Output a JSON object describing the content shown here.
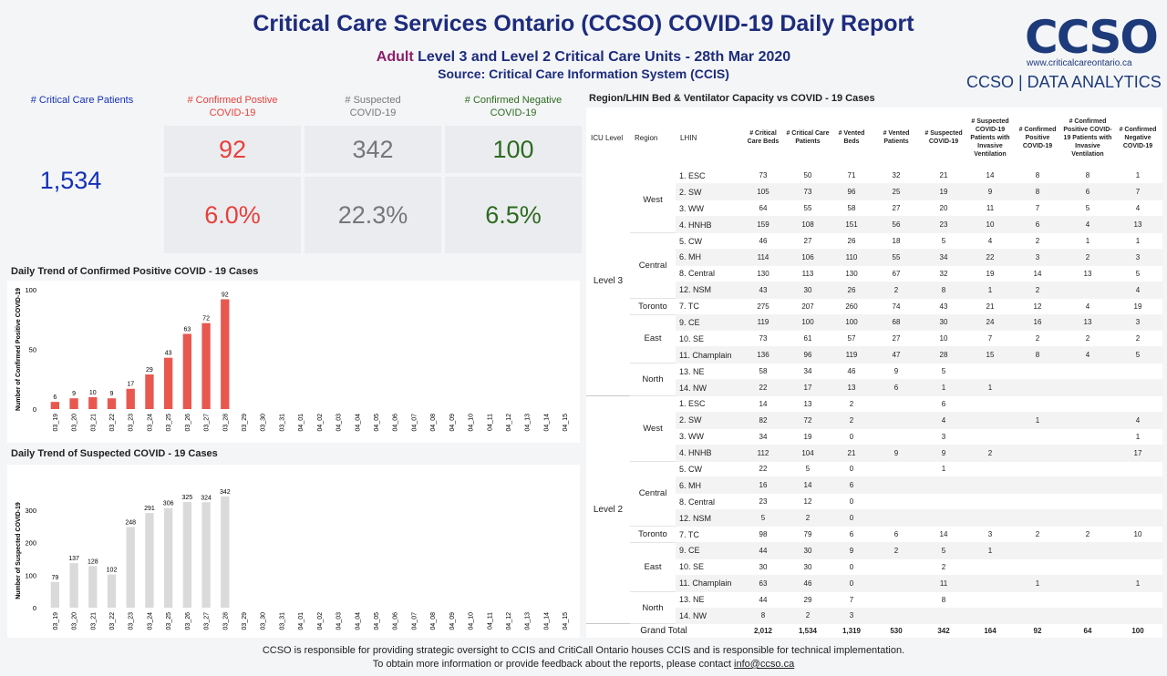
{
  "header": {
    "title": "Critical Care Services Ontario (CCSO) COVID-19 Daily Report",
    "subtitle_adult": "Adult",
    "subtitle_rest": "Level 3 and Level 2 Critical Care Units - 28th Mar 2020",
    "source": "Source: Critical Care Information System (CCIS)"
  },
  "logo": {
    "wordmark": "CCSO",
    "url": "www.criticalcareontario.ca",
    "tagline": "CCSO | DATA ANALYTICS"
  },
  "colors": {
    "navy": "#1d2c7c",
    "patients": "#1331b8",
    "positive": "#e8403a",
    "suspected": "#777777",
    "negative": "#2d6b1f",
    "bar_positive": "#e8584f",
    "bar_suspected": "#dadada"
  },
  "kpis": {
    "patients_label": "# Critical Care Patients",
    "patients_value": "1,534",
    "positive_label_1": "# Confirmed Postive",
    "positive_label_2": "COVID-19",
    "positive_count": "92",
    "positive_pct": "6.0%",
    "suspected_label_1": "# Suspected",
    "suspected_label_2": "COVID-19",
    "suspected_count": "342",
    "suspected_pct": "22.3%",
    "negative_label_1": "# Confirmed Negative",
    "negative_label_2": "COVID-19",
    "negative_count": "100",
    "negative_pct": "6.5%"
  },
  "chart_data": [
    {
      "type": "bar",
      "title": "Daily Trend of Confirmed Positive COVID - 19 Cases",
      "ylabel": "Number of Confirmed Positive COVID-19",
      "categories": [
        "03_19",
        "03_20",
        "03_21",
        "03_22",
        "03_23",
        "03_24",
        "03_25",
        "03_26",
        "03_27",
        "03_28",
        "03_29",
        "03_30",
        "03_31",
        "04_01",
        "04_02",
        "04_03",
        "04_04",
        "04_05",
        "04_06",
        "04_07",
        "04_08",
        "04_09",
        "04_10",
        "04_11",
        "04_12",
        "04_13",
        "04_14",
        "04_15"
      ],
      "values": [
        6,
        9,
        10,
        9,
        17,
        29,
        43,
        63,
        72,
        92,
        null,
        null,
        null,
        null,
        null,
        null,
        null,
        null,
        null,
        null,
        null,
        null,
        null,
        null,
        null,
        null,
        null,
        null
      ],
      "ylim": [
        0,
        100
      ],
      "yticks": [
        0,
        50,
        100
      ],
      "grid": false
    },
    {
      "type": "bar",
      "title": "Daily Trend of Suspected COVID - 19 Cases",
      "ylabel": "Number of Suspected COVID-19",
      "categories": [
        "03_19",
        "03_20",
        "03_21",
        "03_22",
        "03_23",
        "03_24",
        "03_25",
        "03_26",
        "03_27",
        "03_28",
        "03_29",
        "03_30",
        "03_31",
        "04_01",
        "04_02",
        "04_03",
        "04_04",
        "04_05",
        "04_06",
        "04_07",
        "04_08",
        "04_09",
        "04_10",
        "04_11",
        "04_12",
        "04_13",
        "04_14",
        "04_15"
      ],
      "values": [
        79,
        137,
        128,
        102,
        248,
        291,
        306,
        325,
        324,
        342,
        null,
        null,
        null,
        null,
        null,
        null,
        null,
        null,
        null,
        null,
        null,
        null,
        null,
        null,
        null,
        null,
        null,
        null
      ],
      "ylim": [
        0,
        350
      ],
      "yticks": [
        0,
        100,
        200,
        300
      ],
      "grid": false
    }
  ],
  "table": {
    "title": "Region/LHIN Bed & Ventilator Capacity vs COVID - 19 Cases",
    "headers": {
      "icu": "ICU Level",
      "region": "Region",
      "lhin": "LHIN",
      "cols": [
        "# Critical Care Beds",
        "# Critical Care Patients",
        "# Vented Beds",
        "# Vented Patients",
        "# Suspected COVID-19",
        "# Suspected COVID-19 Patients with Invasive Ventilation",
        "# Confirmed Positive COVID-19",
        "# Confirmed Positive COVID-19 Patients with Invasive Ventilation",
        "# Confirmed Negative COVID-19"
      ]
    },
    "levels": [
      {
        "name": "Level 3",
        "regions": [
          {
            "name": "West",
            "rows": [
              {
                "lhin": "1. ESC",
                "v": [
                  "73",
                  "50",
                  "71",
                  "32",
                  "21",
                  "14",
                  "8",
                  "8",
                  "1"
                ]
              },
              {
                "lhin": "2. SW",
                "v": [
                  "105",
                  "73",
                  "96",
                  "25",
                  "19",
                  "9",
                  "8",
                  "6",
                  "7"
                ]
              },
              {
                "lhin": "3. WW",
                "v": [
                  "64",
                  "55",
                  "58",
                  "27",
                  "20",
                  "11",
                  "7",
                  "5",
                  "4"
                ]
              },
              {
                "lhin": "4. HNHB",
                "v": [
                  "159",
                  "108",
                  "151",
                  "56",
                  "23",
                  "10",
                  "6",
                  "4",
                  "13"
                ]
              }
            ]
          },
          {
            "name": "Central",
            "rows": [
              {
                "lhin": "5. CW",
                "v": [
                  "46",
                  "27",
                  "26",
                  "18",
                  "5",
                  "4",
                  "2",
                  "1",
                  "1"
                ]
              },
              {
                "lhin": "6. MH",
                "v": [
                  "114",
                  "106",
                  "110",
                  "55",
                  "34",
                  "22",
                  "3",
                  "2",
                  "3"
                ]
              },
              {
                "lhin": "8. Central",
                "v": [
                  "130",
                  "113",
                  "130",
                  "67",
                  "32",
                  "19",
                  "14",
                  "13",
                  "5"
                ]
              },
              {
                "lhin": "12. NSM",
                "v": [
                  "43",
                  "30",
                  "26",
                  "2",
                  "8",
                  "1",
                  "2",
                  "",
                  "4"
                ]
              }
            ]
          },
          {
            "name": "Toronto",
            "rows": [
              {
                "lhin": "7. TC",
                "v": [
                  "275",
                  "207",
                  "260",
                  "74",
                  "43",
                  "21",
                  "12",
                  "4",
                  "19"
                ]
              }
            ]
          },
          {
            "name": "East",
            "rows": [
              {
                "lhin": "9. CE",
                "v": [
                  "119",
                  "100",
                  "100",
                  "68",
                  "30",
                  "24",
                  "16",
                  "13",
                  "3"
                ]
              },
              {
                "lhin": "10. SE",
                "v": [
                  "73",
                  "61",
                  "57",
                  "27",
                  "10",
                  "7",
                  "2",
                  "2",
                  "2"
                ]
              },
              {
                "lhin": "11. Champlain",
                "v": [
                  "136",
                  "96",
                  "119",
                  "47",
                  "28",
                  "15",
                  "8",
                  "4",
                  "5"
                ]
              }
            ]
          },
          {
            "name": "North",
            "rows": [
              {
                "lhin": "13. NE",
                "v": [
                  "58",
                  "34",
                  "46",
                  "9",
                  "5",
                  "",
                  "",
                  "",
                  ""
                ]
              },
              {
                "lhin": "14. NW",
                "v": [
                  "22",
                  "17",
                  "13",
                  "6",
                  "1",
                  "1",
                  "",
                  "",
                  ""
                ]
              }
            ]
          }
        ]
      },
      {
        "name": "Level 2",
        "regions": [
          {
            "name": "West",
            "rows": [
              {
                "lhin": "1. ESC",
                "v": [
                  "14",
                  "13",
                  "2",
                  "",
                  "6",
                  "",
                  "",
                  "",
                  ""
                ]
              },
              {
                "lhin": "2. SW",
                "v": [
                  "82",
                  "72",
                  "2",
                  "",
                  "4",
                  "",
                  "1",
                  "",
                  "4"
                ]
              },
              {
                "lhin": "3. WW",
                "v": [
                  "34",
                  "19",
                  "0",
                  "",
                  "3",
                  "",
                  "",
                  "",
                  "1"
                ]
              },
              {
                "lhin": "4. HNHB",
                "v": [
                  "112",
                  "104",
                  "21",
                  "9",
                  "9",
                  "2",
                  "",
                  "",
                  "17"
                ]
              }
            ]
          },
          {
            "name": "Central",
            "rows": [
              {
                "lhin": "5. CW",
                "v": [
                  "22",
                  "5",
                  "0",
                  "",
                  "1",
                  "",
                  "",
                  "",
                  ""
                ]
              },
              {
                "lhin": "6. MH",
                "v": [
                  "16",
                  "14",
                  "6",
                  "",
                  "",
                  "",
                  "",
                  "",
                  ""
                ]
              },
              {
                "lhin": "8. Central",
                "v": [
                  "23",
                  "12",
                  "0",
                  "",
                  "",
                  "",
                  "",
                  "",
                  ""
                ]
              },
              {
                "lhin": "12. NSM",
                "v": [
                  "5",
                  "2",
                  "0",
                  "",
                  "",
                  "",
                  "",
                  "",
                  ""
                ]
              }
            ]
          },
          {
            "name": "Toronto",
            "rows": [
              {
                "lhin": "7. TC",
                "v": [
                  "98",
                  "79",
                  "6",
                  "6",
                  "14",
                  "3",
                  "2",
                  "2",
                  "10"
                ]
              }
            ]
          },
          {
            "name": "East",
            "rows": [
              {
                "lhin": "9. CE",
                "v": [
                  "44",
                  "30",
                  "9",
                  "2",
                  "5",
                  "1",
                  "",
                  "",
                  ""
                ]
              },
              {
                "lhin": "10. SE",
                "v": [
                  "30",
                  "30",
                  "0",
                  "",
                  "2",
                  "",
                  "",
                  "",
                  ""
                ]
              },
              {
                "lhin": "11. Champlain",
                "v": [
                  "63",
                  "46",
                  "0",
                  "",
                  "11",
                  "",
                  "1",
                  "",
                  "1"
                ]
              }
            ]
          },
          {
            "name": "North",
            "rows": [
              {
                "lhin": "13. NE",
                "v": [
                  "44",
                  "29",
                  "7",
                  "",
                  "8",
                  "",
                  "",
                  "",
                  ""
                ]
              },
              {
                "lhin": "14. NW",
                "v": [
                  "8",
                  "2",
                  "3",
                  "",
                  "",
                  "",
                  "",
                  "",
                  ""
                ]
              }
            ]
          }
        ]
      }
    ],
    "grand_total": {
      "label": "Grand Total",
      "v": [
        "2,012",
        "1,534",
        "1,319",
        "530",
        "342",
        "164",
        "92",
        "64",
        "100"
      ]
    }
  },
  "footer": {
    "line1": "CCSO is responsible for providing strategic oversight to CCIS and CritiCall Ontario houses CCIS and is responsible for technical implementation.",
    "line2": "To obtain more information or provide feedback about the reports, please contact",
    "email": "info@ccso.ca"
  }
}
